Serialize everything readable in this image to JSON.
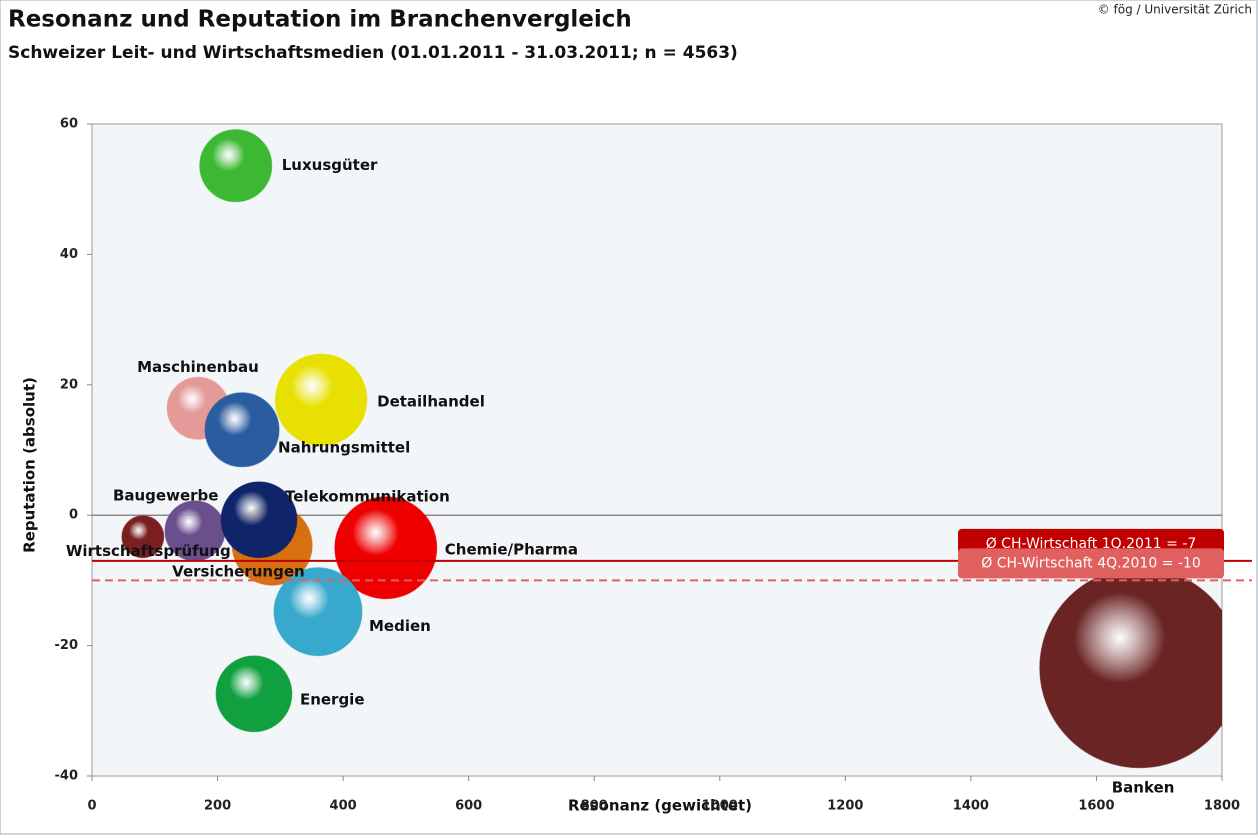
{
  "chart_data": {
    "type": "bubble",
    "title": "Resonanz und Reputation im Branchenvergleich",
    "subtitle": "Schweizer Leit- und Wirtschaftsmedien (01.01.2011 - 31.03.2011; n = 4563)",
    "source": "© fög / Universität Zürich",
    "xlabel": "Resonanz (gewichtet)",
    "ylabel": "Reputation (absolut)",
    "xlim": [
      0,
      1800
    ],
    "ylim": [
      -40,
      60
    ],
    "xticks": [
      0,
      200,
      400,
      600,
      800,
      1000,
      1200,
      1400,
      1600,
      1800
    ],
    "yticks": [
      -40,
      -20,
      0,
      20,
      40,
      60
    ],
    "series": [
      {
        "name": "Luxusgüter",
        "color": "#3cb832",
        "x": [
          229
        ],
        "values": [
          53.6
        ],
        "sizes": [
          13
        ]
      },
      {
        "name": "Maschinenbau",
        "color": "#e59a9a",
        "x": [
          169
        ],
        "values": [
          16.4
        ],
        "sizes": [
          9.6
        ]
      },
      {
        "name": "Detailhandel",
        "color": "#e8e000",
        "x": [
          365
        ],
        "values": [
          17.7
        ],
        "sizes": [
          21
        ]
      },
      {
        "name": "Nahrungsmittel",
        "color": "#2a5da0",
        "x": [
          239
        ],
        "values": [
          13.1
        ],
        "sizes": [
          13.7
        ]
      },
      {
        "name": "Wirtschaftsprüfung",
        "color": "#7a2020",
        "x": [
          81
        ],
        "values": [
          -3.3
        ],
        "sizes": [
          4.4
        ]
      },
      {
        "name": "Baugewerbe",
        "color": "#6a4f8c",
        "x": [
          164
        ],
        "values": [
          -2.4
        ],
        "sizes": [
          9
        ]
      },
      {
        "name": "Versicherungen",
        "color": "#d9700f",
        "x": [
          287
        ],
        "values": [
          -4.6
        ],
        "sizes": [
          16
        ]
      },
      {
        "name": "Telekommunikation",
        "color": "#10246a",
        "x": [
          266
        ],
        "values": [
          -0.7
        ],
        "sizes": [
          14.4
        ]
      },
      {
        "name": "Chemie/Pharma",
        "color": "#ee0000",
        "x": [
          468
        ],
        "values": [
          -5
        ],
        "sizes": [
          26
        ]
      },
      {
        "name": "Medien",
        "color": "#38a8cc",
        "x": [
          360
        ],
        "values": [
          -14.8
        ],
        "sizes": [
          19.4
        ]
      },
      {
        "name": "Energie",
        "color": "#10a040",
        "x": [
          258
        ],
        "values": [
          -27.4
        ],
        "sizes": [
          14.4
        ]
      },
      {
        "name": "Banken",
        "color": "#6b2424",
        "x": [
          1669
        ],
        "values": [
          -23.4
        ],
        "sizes": [
          100
        ]
      }
    ],
    "reference_lines": [
      {
        "label": "Ø CH-Wirtschaft 1Q.2011 = -7",
        "value": -7,
        "color": "#c00000",
        "style": "solid"
      },
      {
        "label": "Ø CH-Wirtschaft 4Q.2010 = -10",
        "value": -10,
        "color": "#e06060",
        "style": "dashed"
      }
    ]
  }
}
